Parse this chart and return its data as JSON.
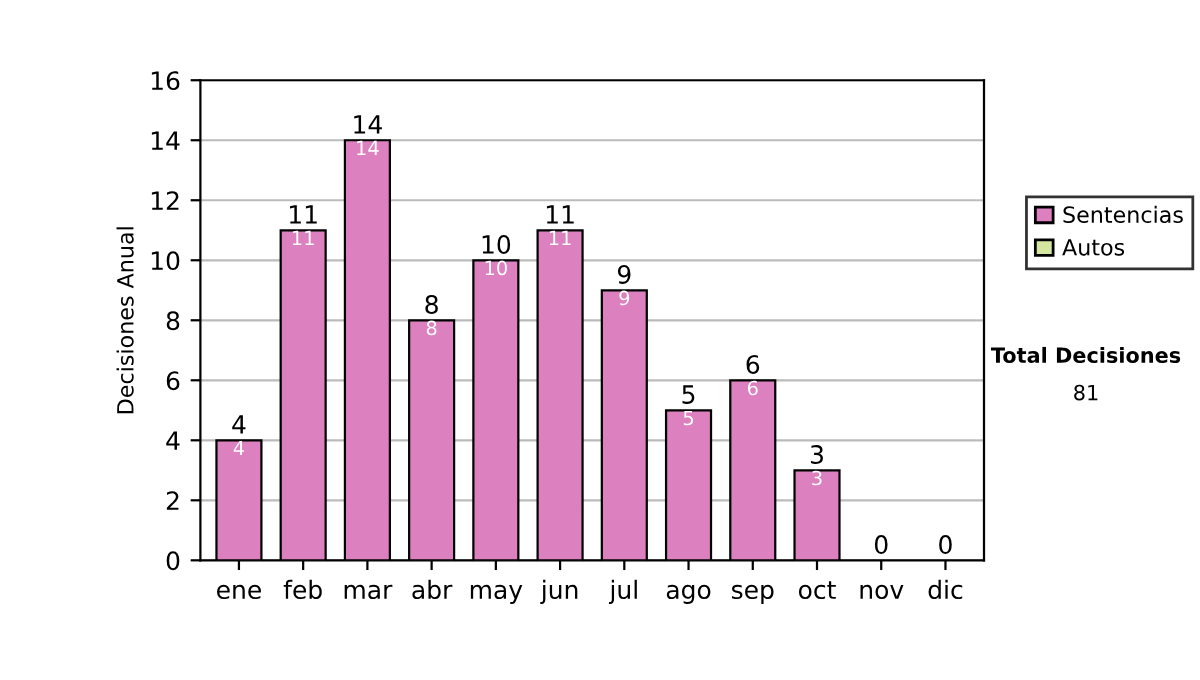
{
  "chart_data": {
    "type": "bar",
    "ylabel": "Decisiones Anual",
    "categories": [
      "ene",
      "feb",
      "mar",
      "abr",
      "may",
      "jun",
      "jul",
      "ago",
      "sep",
      "oct",
      "nov",
      "dic"
    ],
    "stacked": true,
    "series": [
      {
        "name": "Sentencias",
        "color": "#dd80c0",
        "values": [
          4,
          11,
          14,
          8,
          10,
          11,
          9,
          5,
          6,
          3,
          0,
          0
        ],
        "value_labels": [
          "4",
          "11",
          "14",
          "8",
          "10",
          "11",
          "9",
          "5",
          "6",
          "3",
          null,
          null
        ]
      },
      {
        "name": "Autos",
        "color": "#d4e6a0",
        "values": [
          0,
          0,
          0,
          0,
          0,
          0,
          0,
          0,
          0,
          0,
          0,
          0
        ]
      }
    ],
    "totals": [
      "4",
      "11",
      "14",
      "8",
      "10",
      "11",
      "9",
      "5",
      "6",
      "3",
      "0",
      "0"
    ],
    "ylim": [
      0,
      16
    ],
    "yticks": [
      0,
      2,
      4,
      6,
      8,
      10,
      12,
      14,
      16
    ],
    "grid": "y",
    "legend": "right",
    "annotations": [
      "Total Decisiones",
      "81"
    ]
  }
}
